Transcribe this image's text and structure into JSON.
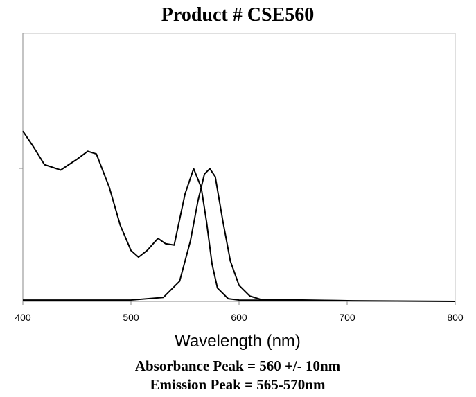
{
  "chart_data": {
    "type": "line",
    "title": "Product # CSE560",
    "x_label": "Wavelength (nm)",
    "annotations": [
      "Absorbance Peak = 560 +/- 10nm",
      "Emission Peak = 565-570nm"
    ],
    "xlim": [
      400,
      800
    ],
    "xticks": [
      400,
      500,
      600,
      700,
      800
    ],
    "ylim": [
      0,
      2
    ],
    "series": [
      {
        "color": "#000000",
        "x": [
          400,
          410,
          420,
          435,
          450,
          460,
          468,
          480,
          490,
          500,
          507,
          515,
          525,
          532,
          540,
          550,
          558,
          565,
          570,
          575,
          580,
          590,
          600,
          650,
          700
        ],
        "values": [
          1.27,
          1.15,
          1.02,
          0.98,
          1.06,
          1.12,
          1.1,
          0.85,
          0.57,
          0.38,
          0.33,
          0.38,
          0.47,
          0.43,
          0.42,
          0.8,
          0.99,
          0.85,
          0.59,
          0.28,
          0.1,
          0.02,
          0.01,
          0.008,
          0.005
        ]
      },
      {
        "color": "#000000",
        "x": [
          400,
          500,
          530,
          545,
          555,
          562,
          568,
          573,
          578,
          585,
          592,
          600,
          610,
          620,
          700,
          800
        ],
        "values": [
          0.01,
          0.01,
          0.03,
          0.15,
          0.45,
          0.75,
          0.95,
          0.99,
          0.93,
          0.6,
          0.3,
          0.12,
          0.04,
          0.015,
          0.005,
          0.0
        ]
      }
    ]
  }
}
